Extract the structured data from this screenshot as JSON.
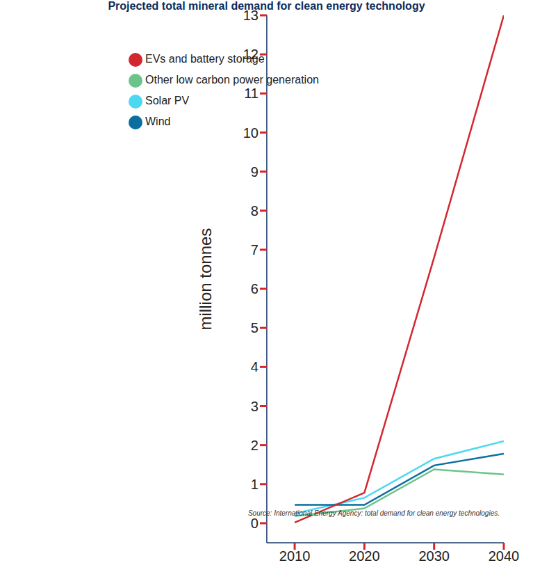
{
  "chart_data": {
    "type": "line",
    "title": "Projected total mineral demand for clean energy technology",
    "y_label": "million tonnes",
    "annotations": [
      "Source: International Energy Agency: total demand for clean energy technologies."
    ],
    "x": [
      2010,
      2020,
      2030,
      2040
    ],
    "xlim": [
      2006,
      2040
    ],
    "xticks": [
      2010,
      2020,
      2030,
      2040
    ],
    "ylim": [
      -0.5,
      13
    ],
    "yticks": [
      0,
      1,
      2,
      3,
      4,
      5,
      6,
      7,
      8,
      9,
      10,
      11,
      12,
      13
    ],
    "grid": false,
    "legend": "top-left",
    "series": [
      {
        "name": "Solar PV",
        "color": "#4dd8f2",
        "values": [
          0.25,
          0.65,
          1.65,
          2.1
        ]
      },
      {
        "name": "Wind",
        "color": "#0b6e9f",
        "values": [
          0.47,
          0.47,
          1.48,
          1.78
        ]
      },
      {
        "name": "EVs and battery storage",
        "color": "#d3272f",
        "values": [
          0.02,
          0.78,
          6.8,
          13
        ]
      },
      {
        "name": "Other low carbon power generation",
        "color": "#6cc48a",
        "values": [
          0.18,
          0.38,
          1.38,
          1.25
        ]
      }
    ]
  }
}
